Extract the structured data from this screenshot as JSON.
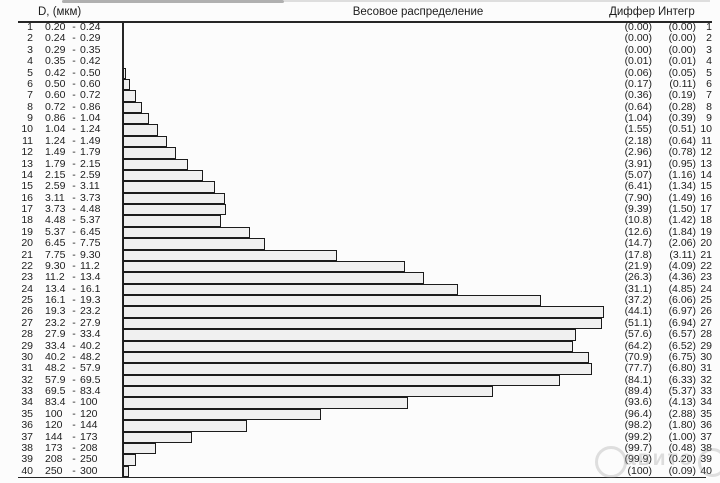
{
  "header": {
    "size_col": "D, (мкм)",
    "title": "Весовое распределение",
    "diff_col": "Диффер",
    "integr_col": "Интегр"
  },
  "watermark": {
    "text": "авито"
  },
  "colors": {
    "bar_fill": "#f0f0f0",
    "bar_border": "#1c1c1c",
    "rule": "#262626",
    "text": "#1d1d1d"
  },
  "chart_data": {
    "type": "bar",
    "orientation": "horizontal",
    "title": "Весовое распределение",
    "size_column_header": "D, (мкм)",
    "value_column_headers": [
      "Диффер",
      "Интегр"
    ],
    "bars_represent": "differential",
    "max_differential": 6.97,
    "rows": [
      {
        "n": "1",
        "low": "0.20",
        "high": "0.24",
        "integral": "0.00",
        "differential": "0.00"
      },
      {
        "n": "2",
        "low": "0.24",
        "high": "0.29",
        "integral": "0.00",
        "differential": "0.00"
      },
      {
        "n": "3",
        "low": "0.29",
        "high": "0.35",
        "integral": "0.00",
        "differential": "0.00"
      },
      {
        "n": "4",
        "low": "0.35",
        "high": "0.42",
        "integral": "0.01",
        "differential": "0.01"
      },
      {
        "n": "5",
        "low": "0.42",
        "high": "0.50",
        "integral": "0.06",
        "differential": "0.05"
      },
      {
        "n": "6",
        "low": "0.50",
        "high": "0.60",
        "integral": "0.17",
        "differential": "0.11"
      },
      {
        "n": "7",
        "low": "0.60",
        "high": "0.72",
        "integral": "0.36",
        "differential": "0.19"
      },
      {
        "n": "8",
        "low": "0.72",
        "high": "0.86",
        "integral": "0.64",
        "differential": "0.28"
      },
      {
        "n": "9",
        "low": "0.86",
        "high": "1.04",
        "integral": "1.04",
        "differential": "0.39"
      },
      {
        "n": "10",
        "low": "1.04",
        "high": "1.24",
        "integral": "1.55",
        "differential": "0.51"
      },
      {
        "n": "11",
        "low": "1.24",
        "high": "1.49",
        "integral": "2.18",
        "differential": "0.64"
      },
      {
        "n": "12",
        "low": "1.49",
        "high": "1.79",
        "integral": "2.96",
        "differential": "0.78"
      },
      {
        "n": "13",
        "low": "1.79",
        "high": "2.15",
        "integral": "3.91",
        "differential": "0.95"
      },
      {
        "n": "14",
        "low": "2.15",
        "high": "2.59",
        "integral": "5.07",
        "differential": "1.16"
      },
      {
        "n": "15",
        "low": "2.59",
        "high": "3.11",
        "integral": "6.41",
        "differential": "1.34"
      },
      {
        "n": "16",
        "low": "3.11",
        "high": "3.73",
        "integral": "7.90",
        "differential": "1.49"
      },
      {
        "n": "17",
        "low": "3.73",
        "high": "4.48",
        "integral": "9.39",
        "differential": "1.50"
      },
      {
        "n": "18",
        "low": "4.48",
        "high": "5.37",
        "integral": "10.8",
        "differential": "1.42"
      },
      {
        "n": "19",
        "low": "5.37",
        "high": "6.45",
        "integral": "12.6",
        "differential": "1.84"
      },
      {
        "n": "20",
        "low": "6.45",
        "high": "7.75",
        "integral": "14.7",
        "differential": "2.06"
      },
      {
        "n": "21",
        "low": "7.75",
        "high": "9.30",
        "integral": "17.8",
        "differential": "3.11"
      },
      {
        "n": "22",
        "low": "9.30",
        "high": "11.2",
        "integral": "21.9",
        "differential": "4.09"
      },
      {
        "n": "23",
        "low": "11.2",
        "high": "13.4",
        "integral": "26.3",
        "differential": "4.36"
      },
      {
        "n": "24",
        "low": "13.4",
        "high": "16.1",
        "integral": "31.1",
        "differential": "4.85"
      },
      {
        "n": "25",
        "low": "16.1",
        "high": "19.3",
        "integral": "37.2",
        "differential": "6.06"
      },
      {
        "n": "26",
        "low": "19.3",
        "high": "23.2",
        "integral": "44.1",
        "differential": "6.97"
      },
      {
        "n": "27",
        "low": "23.2",
        "high": "27.9",
        "integral": "51.1",
        "differential": "6.94"
      },
      {
        "n": "28",
        "low": "27.9",
        "high": "33.4",
        "integral": "57.6",
        "differential": "6.57"
      },
      {
        "n": "29",
        "low": "33.4",
        "high": "40.2",
        "integral": "64.2",
        "differential": "6.52"
      },
      {
        "n": "30",
        "low": "40.2",
        "high": "48.2",
        "integral": "70.9",
        "differential": "6.75"
      },
      {
        "n": "31",
        "low": "48.2",
        "high": "57.9",
        "integral": "77.7",
        "differential": "6.80"
      },
      {
        "n": "32",
        "low": "57.9",
        "high": "69.5",
        "integral": "84.1",
        "differential": "6.33"
      },
      {
        "n": "33",
        "low": "69.5",
        "high": "83.4",
        "integral": "89.4",
        "differential": "5.37"
      },
      {
        "n": "34",
        "low": "83.4",
        "high": "100",
        "integral": "93.6",
        "differential": "4.13"
      },
      {
        "n": "35",
        "low": "100",
        "high": "120",
        "integral": "96.4",
        "differential": "2.88"
      },
      {
        "n": "36",
        "low": "120",
        "high": "144",
        "integral": "98.2",
        "differential": "1.80"
      },
      {
        "n": "37",
        "low": "144",
        "high": "173",
        "integral": "99.2",
        "differential": "1.00"
      },
      {
        "n": "38",
        "low": "173",
        "high": "208",
        "integral": "99.7",
        "differential": "0.48"
      },
      {
        "n": "39",
        "low": "208",
        "high": "250",
        "integral": "99.9",
        "differential": "0.20"
      },
      {
        "n": "40",
        "low": "250",
        "high": "300",
        "integral": "100",
        "differential": "0.09"
      }
    ]
  }
}
